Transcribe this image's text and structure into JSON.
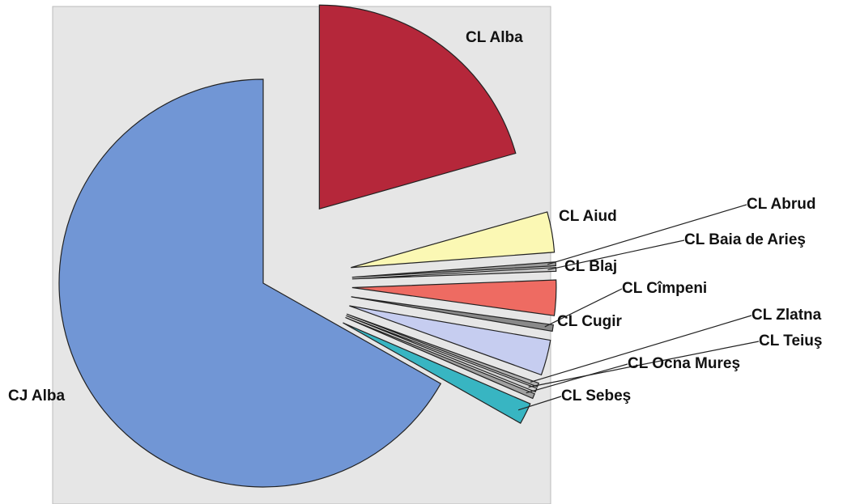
{
  "chart_data": {
    "type": "pie",
    "categories": [
      "CL Alba",
      "CL Aiud",
      "CL Abrud",
      "CL Baia de Arieş",
      "CL Blaj",
      "CL Cîmpeni",
      "CL Cugir",
      "CL Zlatna",
      "CL Teiuş",
      "CL Ocna Mureş",
      "CL Sebeş",
      "CJ Alba"
    ],
    "values": [
      20.6,
      3.2,
      0.3,
      0.3,
      2.8,
      0.5,
      2.8,
      0.3,
      0.3,
      0.4,
      1.7,
      66.8
    ],
    "colors": [
      "#b5273a",
      "#fbf8b4",
      "#9b9b9b",
      "#c9c9c9",
      "#ee6b62",
      "#8a8a8a",
      "#c6cdf0",
      "#b0b0b0",
      "#d0d0d0",
      "#a0a0a0",
      "#38b5c2",
      "#7196d5"
    ]
  }
}
